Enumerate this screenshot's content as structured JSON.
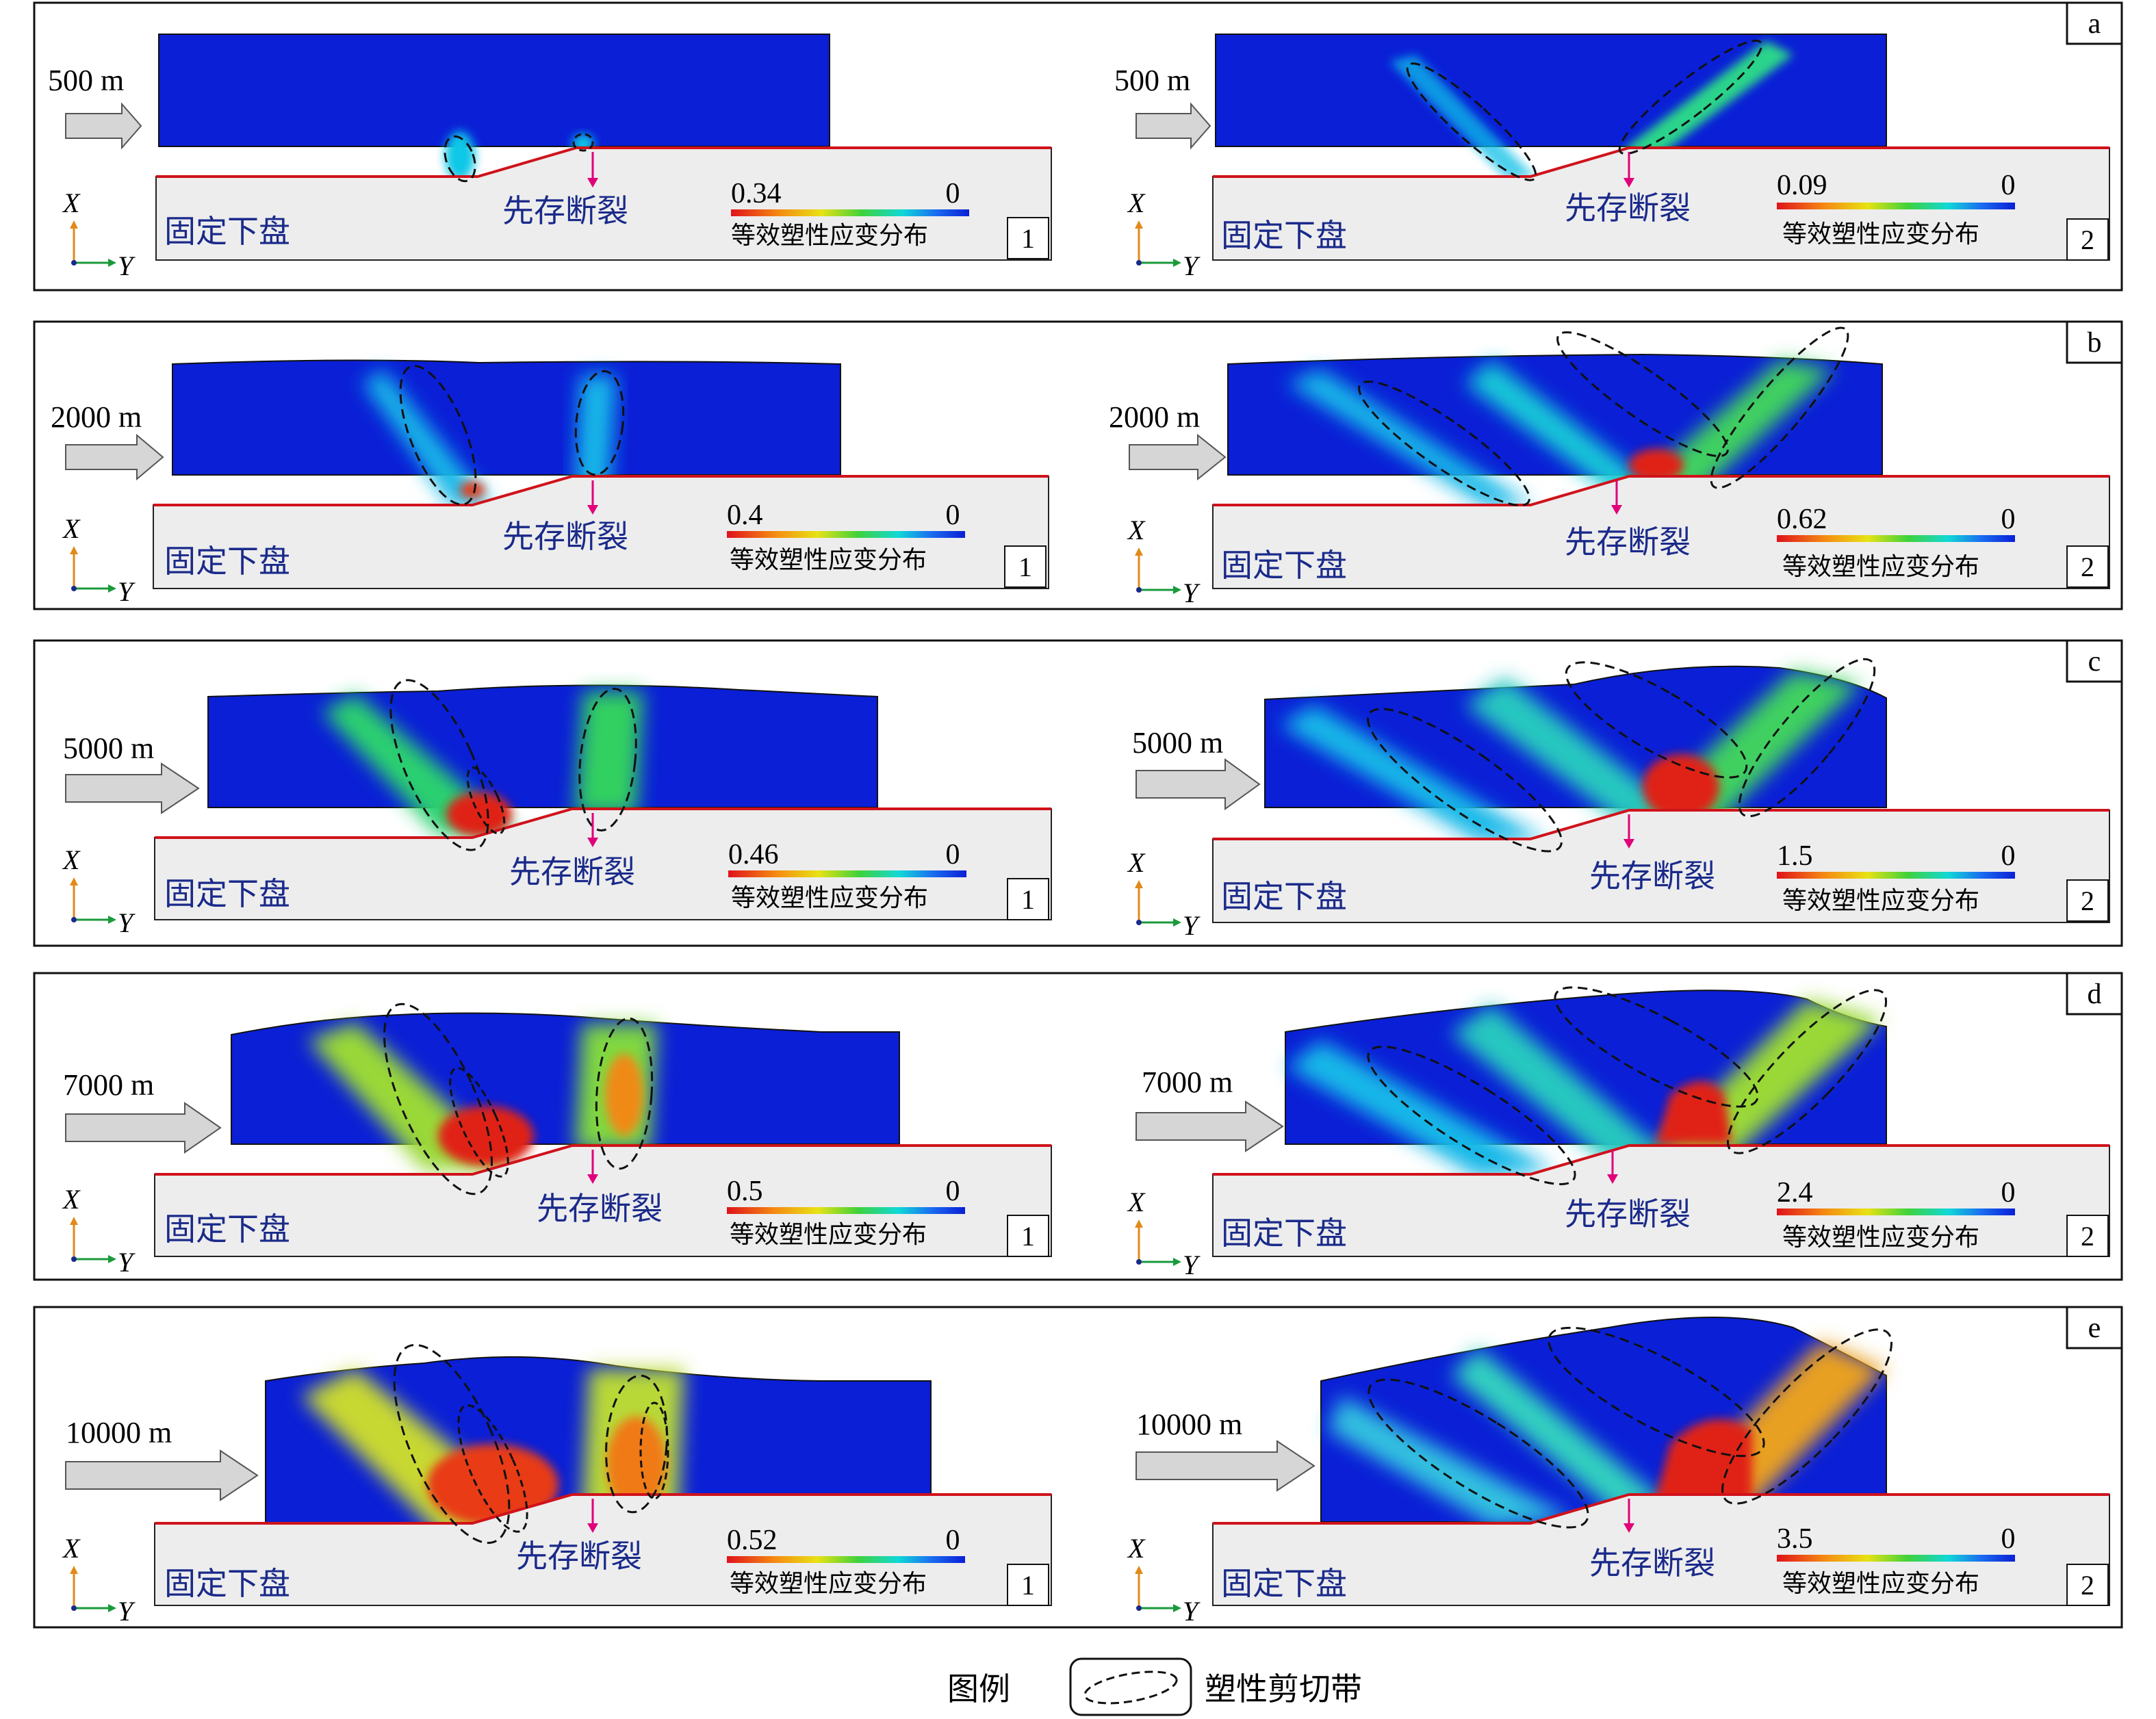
{
  "common": {
    "footwall_label": "固定下盘",
    "fault_label": "先存断裂",
    "colorbar_caption": "等效塑性应变分布",
    "colorbar_min": "0",
    "axis_x": "X",
    "axis_y": "Y"
  },
  "rows": [
    {
      "letter": "a",
      "displacement": "500 m",
      "max_left": "0.34",
      "max_right": "0.09",
      "num_left": "1",
      "num_right": "2"
    },
    {
      "letter": "b",
      "displacement": "2000 m",
      "max_left": "0.4",
      "max_right": "0.62",
      "num_left": "1",
      "num_right": "2"
    },
    {
      "letter": "c",
      "displacement": "5000 m",
      "max_left": "0.46",
      "max_right": "1.5",
      "num_left": "1",
      "num_right": "2"
    },
    {
      "letter": "d",
      "displacement": "7000 m",
      "max_left": "0.5",
      "max_right": "2.4",
      "num_left": "1",
      "num_right": "2"
    },
    {
      "letter": "e",
      "displacement": "10000 m",
      "max_left": "0.52",
      "max_right": "3.5",
      "num_left": "1",
      "num_right": "2"
    }
  ],
  "legend": {
    "title": "图例",
    "label": "塑性剪切带"
  },
  "colors": {
    "background_blue": "#0a1fd6",
    "fault_line": "#d0121b",
    "footwall_fill": "#ededed",
    "arrow_fill": "#d6d6d6",
    "fault_arrow": "#e0007a"
  }
}
